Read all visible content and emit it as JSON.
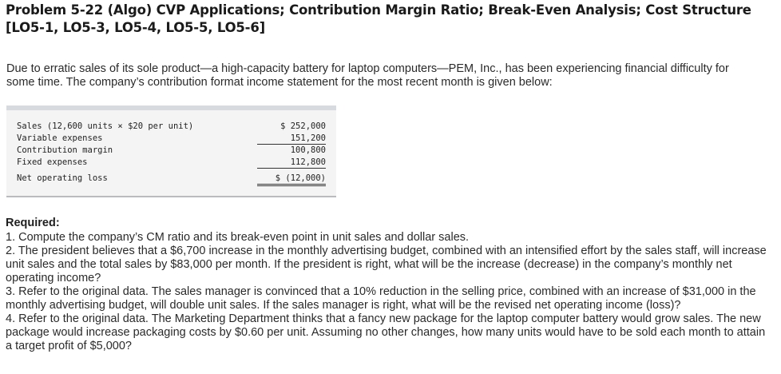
{
  "title": "Problem 5-22 (Algo) CVP Applications; Contribution Margin Ratio; Break-Even Analysis; Cost Structure [LO5-1, LO5-3, LO5-4, LO5-5, LO5-6]",
  "intro": "Due to erratic sales of its sole product—a high-capacity battery for laptop computers—PEM, Inc., has been experiencing financial difficulty for some time. The company’s contribution format income statement for the most recent month is given below:",
  "statement": {
    "rows": [
      {
        "label": "Sales (12,600 units × $20 per unit)",
        "amount": "$ 252,000"
      },
      {
        "label": "Variable expenses",
        "amount": "151,200"
      },
      {
        "label": "Contribution margin",
        "amount": "100,800"
      },
      {
        "label": "Fixed expenses",
        "amount": "112,800"
      },
      {
        "label": "Net operating loss",
        "amount": "$ (12,000)"
      }
    ]
  },
  "required": {
    "heading": "Required:",
    "items": [
      "1. Compute the company’s CM ratio and its break-even point in unit sales and dollar sales.",
      "2. The president believes that a $6,700 increase in the monthly advertising budget, combined with an intensified effort by the sales staff, will increase unit sales and the total sales by $83,000 per month. If the president is right, what will be the increase (decrease) in the company’s monthly net operating income?",
      "3. Refer to the original data. The sales manager is convinced that a 10% reduction in the selling price, combined with an increase of $31,000 in the monthly advertising budget, will double unit sales. If the sales manager is right, what will be the revised net operating income (loss)?",
      "4. Refer to the original data. The Marketing Department thinks that a fancy new package for the laptop computer battery would grow sales. The new package would increase packaging costs by $0.60 per unit. Assuming no other changes, how many units would have to be sold each month to attain a target profit of $5,000?"
    ]
  }
}
